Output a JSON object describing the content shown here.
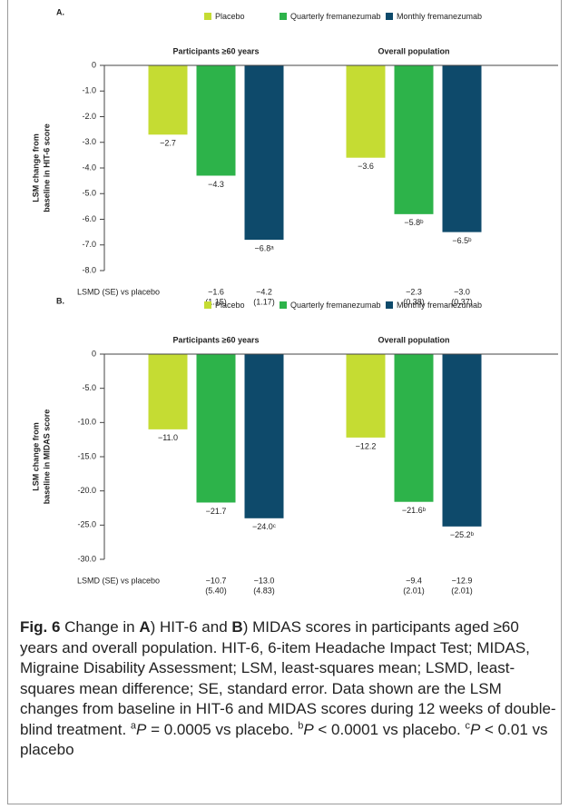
{
  "chart_data": [
    {
      "type": "bar",
      "panel_label": "A.",
      "ylabel": [
        "LSM change from",
        "baseline in HIT-6 score"
      ],
      "categories": [
        "Participants ≥60 years",
        "Overall population"
      ],
      "series": [
        {
          "name": "Placebo",
          "color": "#c5dc33",
          "values": [
            -2.7,
            -3.6
          ],
          "value_labels": [
            "−2.7",
            "−3.6"
          ]
        },
        {
          "name": "Quarterly fremanezumab",
          "color": "#2db34a",
          "values": [
            -4.3,
            -5.8
          ],
          "value_labels": [
            "−4.3",
            "−5.8ᵇ"
          ],
          "lsmd": [
            "−1.6",
            "−2.3"
          ],
          "lsmd_se": [
            "(1.15)",
            "(0.38)"
          ]
        },
        {
          "name": "Monthly fremanezumab",
          "color": "#0e4a6b",
          "values": [
            -6.8,
            -6.5
          ],
          "value_labels": [
            "−6.8ᵃ",
            "−6.5ᵇ"
          ],
          "lsmd": [
            "−4.2",
            "−3.0"
          ],
          "lsmd_se": [
            "(1.17)",
            "(0.37)"
          ]
        }
      ],
      "lsmd_label": "LSMD (SE) vs placebo",
      "ylim": [
        -8,
        0
      ],
      "yticks": [
        0,
        {
          "value": -1,
          "label": "-1.0"
        },
        {
          "value": -2,
          "label": "-2.0"
        },
        {
          "value": -3,
          "label": "-3.0"
        },
        {
          "value": -4,
          "label": "-4.0"
        },
        {
          "value": -5,
          "label": "-5.0"
        },
        {
          "value": -6,
          "label": "-6.0"
        },
        {
          "value": -7,
          "label": "-7.0"
        },
        {
          "value": -8,
          "label": "-8.0"
        }
      ],
      "grid": false
    },
    {
      "type": "bar",
      "panel_label": "B.",
      "ylabel": [
        "LSM change from",
        "baseline in MIDAS score"
      ],
      "categories": [
        "Participants ≥60 years",
        "Overall population"
      ],
      "series": [
        {
          "name": "Placebo",
          "color": "#c5dc33",
          "values": [
            -11.0,
            -12.2
          ],
          "value_labels": [
            "−11.0",
            "−12.2"
          ]
        },
        {
          "name": "Quarterly fremanezumab",
          "color": "#2db34a",
          "values": [
            -21.7,
            -21.6
          ],
          "value_labels": [
            "−21.7",
            "−21.6ᵇ"
          ],
          "lsmd": [
            "−10.7",
            "−9.4"
          ],
          "lsmd_se": [
            "(5.40)",
            "(2.01)"
          ]
        },
        {
          "name": "Monthly fremanezumab",
          "color": "#0e4a6b",
          "values": [
            -24.0,
            -25.2
          ],
          "value_labels": [
            "−24.0ᶜ",
            "−25.2ᵇ"
          ],
          "lsmd": [
            "−13.0",
            "−12.9"
          ],
          "lsmd_se": [
            "(4.83)",
            "(2.01)"
          ]
        }
      ],
      "lsmd_label": "LSMD (SE) vs placebo",
      "ylim": [
        -30,
        0
      ],
      "yticks": [
        0,
        {
          "value": -5,
          "label": "-5.0"
        },
        {
          "value": -10,
          "label": "-10.0"
        },
        {
          "value": -15,
          "label": "-15.0"
        },
        {
          "value": -20,
          "label": "-20.0"
        },
        {
          "value": -25,
          "label": "-25.0"
        },
        {
          "value": -30,
          "label": "-30.0"
        }
      ],
      "grid": false
    }
  ],
  "caption": [
    {
      "text": "Fig. 6",
      "bold": true
    },
    {
      "text": " Change in "
    },
    {
      "text": "A",
      "bold": true
    },
    {
      "text": ") HIT-6 and "
    },
    {
      "text": "B",
      "bold": true
    },
    {
      "text": ") MIDAS scores in participants aged ≥60 years and overall population. HIT-6, 6-item Headache Impact Test; MIDAS, Migraine Disability Assessment; LSM, least-squares mean; LSMD, least-squares mean difference; SE, standard error. Data shown are the LSM changes from baseline in HIT-6 and MIDAS scores during 12 weeks of double-blind treatment. "
    },
    {
      "text": "a",
      "sup": true
    },
    {
      "text": "P",
      "italic": true
    },
    {
      "text": " = 0.0005 vs placebo. "
    },
    {
      "text": "b",
      "sup": true
    },
    {
      "text": "P",
      "italic": true
    },
    {
      "text": " < 0.0001 vs placebo. "
    },
    {
      "text": "c",
      "sup": true
    },
    {
      "text": "P",
      "italic": true
    },
    {
      "text": " < 0.01 vs placebo"
    }
  ]
}
